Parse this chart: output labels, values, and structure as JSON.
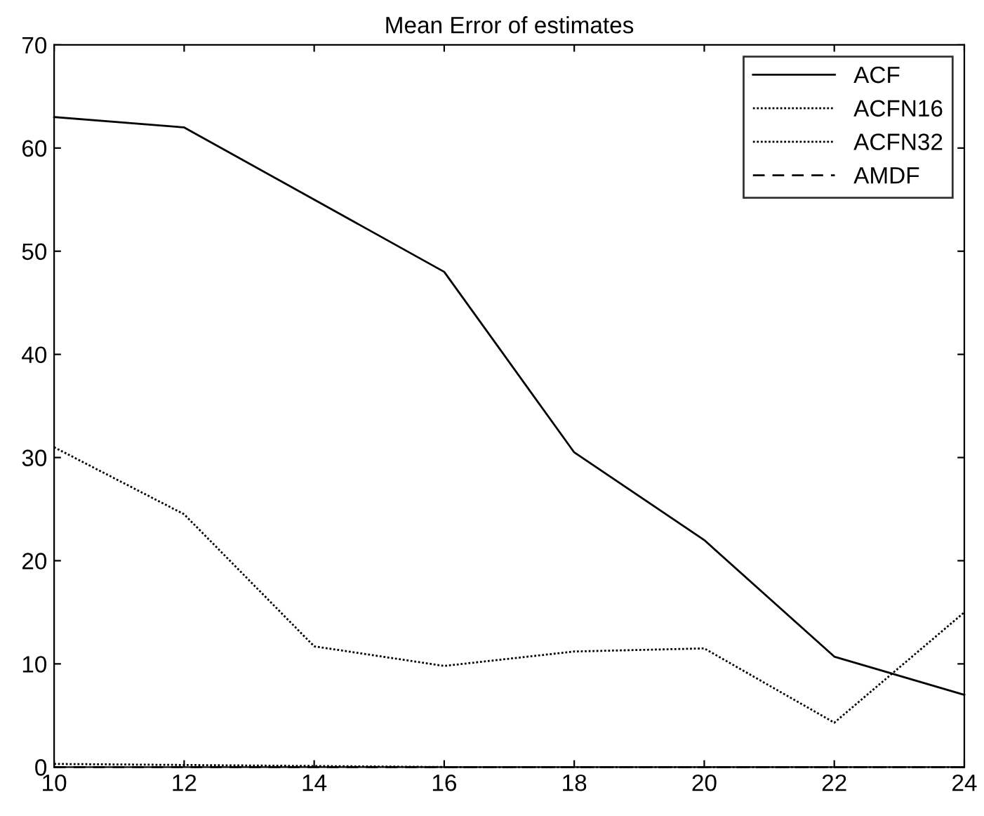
{
  "chart_data": {
    "type": "line",
    "title": "Mean Error of estimates",
    "x": [
      10,
      12,
      14,
      16,
      18,
      20,
      22,
      24
    ],
    "series": [
      {
        "name": "ACF",
        "color": "#000000",
        "line_style": "solid",
        "values": [
          63,
          62,
          55,
          48,
          30.5,
          22,
          10.7,
          7
        ]
      },
      {
        "name": "ACFN16",
        "color": "#000000",
        "line_style": "dotted",
        "values": [
          31,
          24.5,
          11.7,
          9.8,
          11.2,
          11.5,
          4.3,
          15
        ]
      },
      {
        "name": "ACFN32",
        "color": "#000000",
        "line_style": "dotted",
        "values": [
          0.3,
          0.2,
          0.1,
          0,
          0,
          0,
          0,
          0
        ]
      },
      {
        "name": "AMDF",
        "color": "#000000",
        "line_style": "dashed",
        "values": [
          0,
          0,
          0,
          0,
          0,
          0,
          0,
          0
        ]
      }
    ],
    "xlim": [
      10,
      24
    ],
    "xticks": [
      10,
      12,
      14,
      16,
      18,
      20,
      22,
      24
    ],
    "ylim": [
      0,
      70
    ],
    "yticks": [
      0,
      10,
      20,
      30,
      40,
      50,
      60,
      70
    ],
    "grid": false,
    "legend": "top right",
    "marker": "none"
  }
}
